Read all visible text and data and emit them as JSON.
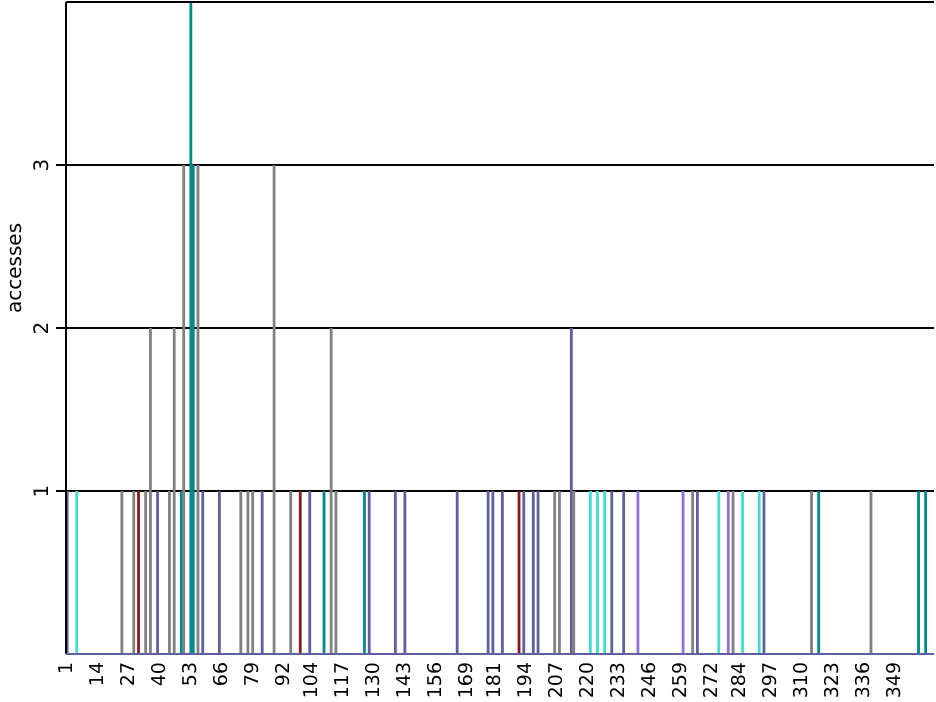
{
  "chart_data": {
    "type": "bar",
    "ylabel": "accesses",
    "xlim": [
      0.5,
      365.5
    ],
    "ylim": [
      0,
      4
    ],
    "yticks": [
      1,
      2,
      3
    ],
    "grid": "y",
    "xticks": [
      1,
      14,
      27,
      40,
      53,
      66,
      79,
      92,
      104,
      117,
      130,
      143,
      156,
      169,
      181,
      194,
      207,
      220,
      233,
      246,
      259,
      272,
      284,
      297,
      310,
      323,
      336,
      349
    ],
    "x": [
      1,
      5,
      24,
      29,
      31,
      34,
      36,
      39,
      44,
      46,
      49,
      50,
      53,
      54,
      56,
      58,
      65,
      74,
      77,
      79,
      83,
      88,
      95,
      99,
      103,
      109,
      112,
      114,
      126,
      128,
      139,
      143,
      165,
      178,
      180,
      184,
      191,
      193,
      197,
      199,
      206,
      208,
      213,
      214,
      221,
      224,
      227,
      230,
      235,
      241,
      260,
      264,
      266,
      275,
      279,
      281,
      285,
      292,
      294,
      314,
      317,
      339,
      359,
      362
    ],
    "values": [
      1,
      1,
      1,
      1,
      1,
      1,
      2,
      1,
      1,
      2,
      1,
      3,
      4,
      3,
      3,
      1,
      1,
      1,
      1,
      1,
      1,
      3,
      1,
      1,
      1,
      1,
      2,
      1,
      1,
      1,
      1,
      1,
      1,
      1,
      1,
      1,
      1,
      1,
      1,
      1,
      1,
      1,
      2,
      1,
      1,
      1,
      1,
      1,
      1,
      1,
      1,
      1,
      1,
      1,
      1,
      1,
      1,
      1,
      1,
      1,
      1,
      1,
      1,
      1
    ],
    "colors": [
      "#5f5f9f",
      "#40e0d0",
      "#808080",
      "#808080",
      "#8b1a1a",
      "#808080",
      "#808080",
      "#5f5f9f",
      "#808080",
      "#808080",
      "#008b8b",
      "#808080",
      "#008b8b",
      "#008b8b",
      "#808080",
      "#5f5f9f",
      "#5f5f9f",
      "#808080",
      "#808080",
      "#808080",
      "#5f5f9f",
      "#808080",
      "#808080",
      "#8b1a1a",
      "#5f5f9f",
      "#008b8b",
      "#808080",
      "#808080",
      "#008b8b",
      "#5f5f9f",
      "#5f5f9f",
      "#5f5f9f",
      "#5f5f9f",
      "#5f5f9f",
      "#5f5f9f",
      "#5f5f9f",
      "#8b1a1a",
      "#5f5f9f",
      "#5f5f9f",
      "#5f5f9f",
      "#808080",
      "#808080",
      "#5f5f9f",
      "#808080",
      "#40e0d0",
      "#40e0d0",
      "#40e0d0",
      "#5f5f9f",
      "#5f5f9f",
      "#9370db",
      "#9370db",
      "#808080",
      "#5f5f9f",
      "#40e0d0",
      "#9370db",
      "#808080",
      "#40e0d0",
      "#40e0d0",
      "#5f5f9f",
      "#808080",
      "#008b8b",
      "#808080",
      "#008b8b",
      "#008b8b"
    ]
  }
}
